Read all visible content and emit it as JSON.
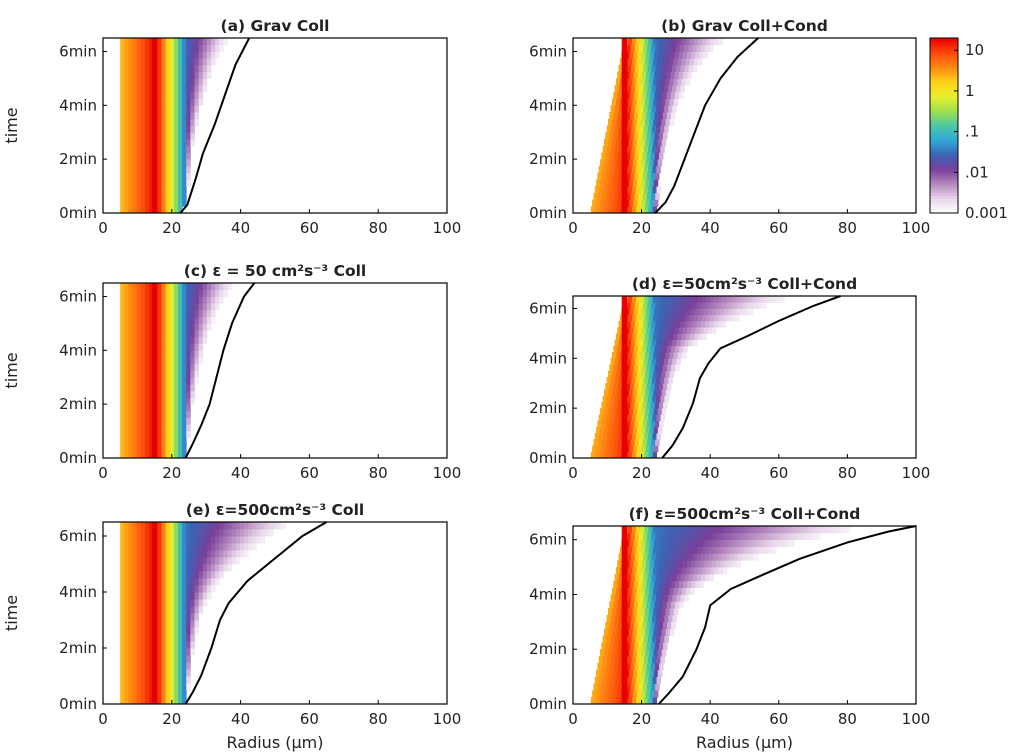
{
  "chart_data": [
    {
      "type": "heatmap",
      "panel_label": "(a)",
      "title": "Grav Coll",
      "ylabel": "time",
      "xlabel": "",
      "xlim": [
        0,
        100
      ],
      "xticks": [
        0,
        20,
        40,
        60,
        80,
        100
      ],
      "yticks_min": [
        0,
        2,
        4,
        6
      ],
      "ylim_min": [
        0,
        6.5
      ],
      "condensation": false,
      "plume_width": 0.6,
      "largest_drop_radius_um": [
        {
          "t": 0.0,
          "r": 22.5
        },
        {
          "t": 0.3,
          "r": 24.5
        },
        {
          "t": 0.7,
          "r": 25.5
        },
        {
          "t": 1.3,
          "r": 27.0
        },
        {
          "t": 2.2,
          "r": 29.0
        },
        {
          "t": 3.3,
          "r": 32.5
        },
        {
          "t": 4.4,
          "r": 35.5
        },
        {
          "t": 5.5,
          "r": 38.5
        },
        {
          "t": 6.5,
          "r": 42.5
        }
      ]
    },
    {
      "type": "heatmap",
      "panel_label": "(b)",
      "title": "Grav Coll+Cond",
      "ylabel": "",
      "xlabel": "",
      "xlim": [
        0,
        100
      ],
      "xticks": [
        0,
        20,
        40,
        60,
        80,
        100
      ],
      "yticks_min": [
        0,
        2,
        4,
        6
      ],
      "ylim_min": [
        0,
        6.5
      ],
      "condensation": true,
      "plume_width": 0.9,
      "largest_drop_radius_um": [
        {
          "t": 0.0,
          "r": 24.0
        },
        {
          "t": 0.4,
          "r": 27.0
        },
        {
          "t": 1.0,
          "r": 29.5
        },
        {
          "t": 2.0,
          "r": 32.5
        },
        {
          "t": 3.0,
          "r": 35.5
        },
        {
          "t": 4.0,
          "r": 38.5
        },
        {
          "t": 5.0,
          "r": 43.0
        },
        {
          "t": 5.8,
          "r": 48.0
        },
        {
          "t": 6.5,
          "r": 54.0
        }
      ]
    },
    {
      "type": "heatmap",
      "panel_label": "(c)",
      "title": "ε = 50 cm²s⁻³ Coll",
      "ylabel": "time",
      "xlabel": "",
      "xlim": [
        0,
        100
      ],
      "xticks": [
        0,
        20,
        40,
        60,
        80,
        100
      ],
      "yticks_min": [
        0,
        2,
        4,
        6
      ],
      "ylim_min": [
        0,
        6.5
      ],
      "condensation": false,
      "plume_width": 1.0,
      "largest_drop_radius_um": [
        {
          "t": 0.0,
          "r": 24.0
        },
        {
          "t": 0.5,
          "r": 26.0
        },
        {
          "t": 1.2,
          "r": 28.5
        },
        {
          "t": 2.0,
          "r": 31.0
        },
        {
          "t": 3.0,
          "r": 33.0
        },
        {
          "t": 4.0,
          "r": 35.0
        },
        {
          "t": 5.0,
          "r": 37.5
        },
        {
          "t": 6.0,
          "r": 41.0
        },
        {
          "t": 6.5,
          "r": 44.0
        }
      ]
    },
    {
      "type": "heatmap",
      "panel_label": "(d)",
      "title": "ε=50cm²s⁻³ Coll+Cond",
      "ylabel": "",
      "xlabel": "",
      "xlim": [
        0,
        100
      ],
      "xticks": [
        0,
        20,
        40,
        60,
        80,
        100
      ],
      "yticks_min": [
        0,
        2,
        4,
        6
      ],
      "ylim_min": [
        0,
        6.5
      ],
      "condensation": true,
      "plume_width": 1.4,
      "largest_drop_radius_um": [
        {
          "t": 0.0,
          "r": 26.0
        },
        {
          "t": 0.5,
          "r": 29.0
        },
        {
          "t": 1.2,
          "r": 32.0
        },
        {
          "t": 2.2,
          "r": 35.0
        },
        {
          "t": 3.2,
          "r": 37.0
        },
        {
          "t": 3.8,
          "r": 39.5
        },
        {
          "t": 4.4,
          "r": 43.0
        },
        {
          "t": 4.9,
          "r": 51.0
        },
        {
          "t": 5.5,
          "r": 60.0
        },
        {
          "t": 6.1,
          "r": 70.0
        },
        {
          "t": 6.5,
          "r": 78.0
        }
      ]
    },
    {
      "type": "heatmap",
      "panel_label": "(e)",
      "title": "ε=500cm²s⁻³ Coll",
      "ylabel": "time",
      "xlabel": "Radius (μm)",
      "xlim": [
        0,
        100
      ],
      "xticks": [
        0,
        20,
        40,
        60,
        80,
        100
      ],
      "yticks_min": [
        0,
        2,
        4,
        6
      ],
      "ylim_min": [
        0,
        6.5
      ],
      "condensation": false,
      "plume_width": 1.6,
      "largest_drop_radius_um": [
        {
          "t": 0.0,
          "r": 24.0
        },
        {
          "t": 0.4,
          "r": 26.0
        },
        {
          "t": 1.0,
          "r": 28.5
        },
        {
          "t": 2.0,
          "r": 31.5
        },
        {
          "t": 3.0,
          "r": 34.0
        },
        {
          "t": 3.6,
          "r": 36.5
        },
        {
          "t": 4.4,
          "r": 42.0
        },
        {
          "t": 5.2,
          "r": 50.0
        },
        {
          "t": 6.0,
          "r": 58.0
        },
        {
          "t": 6.5,
          "r": 65.0
        }
      ]
    },
    {
      "type": "heatmap",
      "panel_label": "(f)",
      "title": "ε=500cm²s⁻³ Coll+Cond",
      "ylabel": "",
      "xlabel": "Radius (μm)",
      "xlim": [
        0,
        100
      ],
      "xticks": [
        0,
        20,
        40,
        60,
        80,
        100
      ],
      "yticks_min": [
        0,
        2,
        4,
        6
      ],
      "ylim_min": [
        0,
        6.5
      ],
      "condensation": true,
      "plume_width": 2.0,
      "largest_drop_radius_um": [
        {
          "t": 0.0,
          "r": 25.0
        },
        {
          "t": 0.4,
          "r": 28.0
        },
        {
          "t": 1.0,
          "r": 32.0
        },
        {
          "t": 2.0,
          "r": 36.0
        },
        {
          "t": 2.8,
          "r": 38.5
        },
        {
          "t": 3.6,
          "r": 40.0
        },
        {
          "t": 4.2,
          "r": 46.0
        },
        {
          "t": 4.7,
          "r": 55.0
        },
        {
          "t": 5.3,
          "r": 66.0
        },
        {
          "t": 5.9,
          "r": 80.0
        },
        {
          "t": 6.3,
          "r": 92.0
        },
        {
          "t": 6.5,
          "r": 100.0
        }
      ]
    }
  ],
  "colorbar": {
    "scale": "log",
    "range": [
      0.001,
      20
    ],
    "tick_values": [
      10,
      1,
      0.1,
      0.01,
      0.001
    ],
    "tick_labels": [
      "10",
      "1",
      ".1",
      ".01",
      "0.001"
    ],
    "colormap": [
      "#ffffff",
      "#e8d6ea",
      "#b58ac0",
      "#7a3f9a",
      "#3c63b4",
      "#30a7d8",
      "#4cc8a4",
      "#9ee04e",
      "#e6ef2e",
      "#ffd01a",
      "#ff8a14",
      "#ff4a0c",
      "#e60000"
    ]
  },
  "tick_unit": "min",
  "colors": {
    "boundary_line": "#000000",
    "frame": "#000000"
  }
}
